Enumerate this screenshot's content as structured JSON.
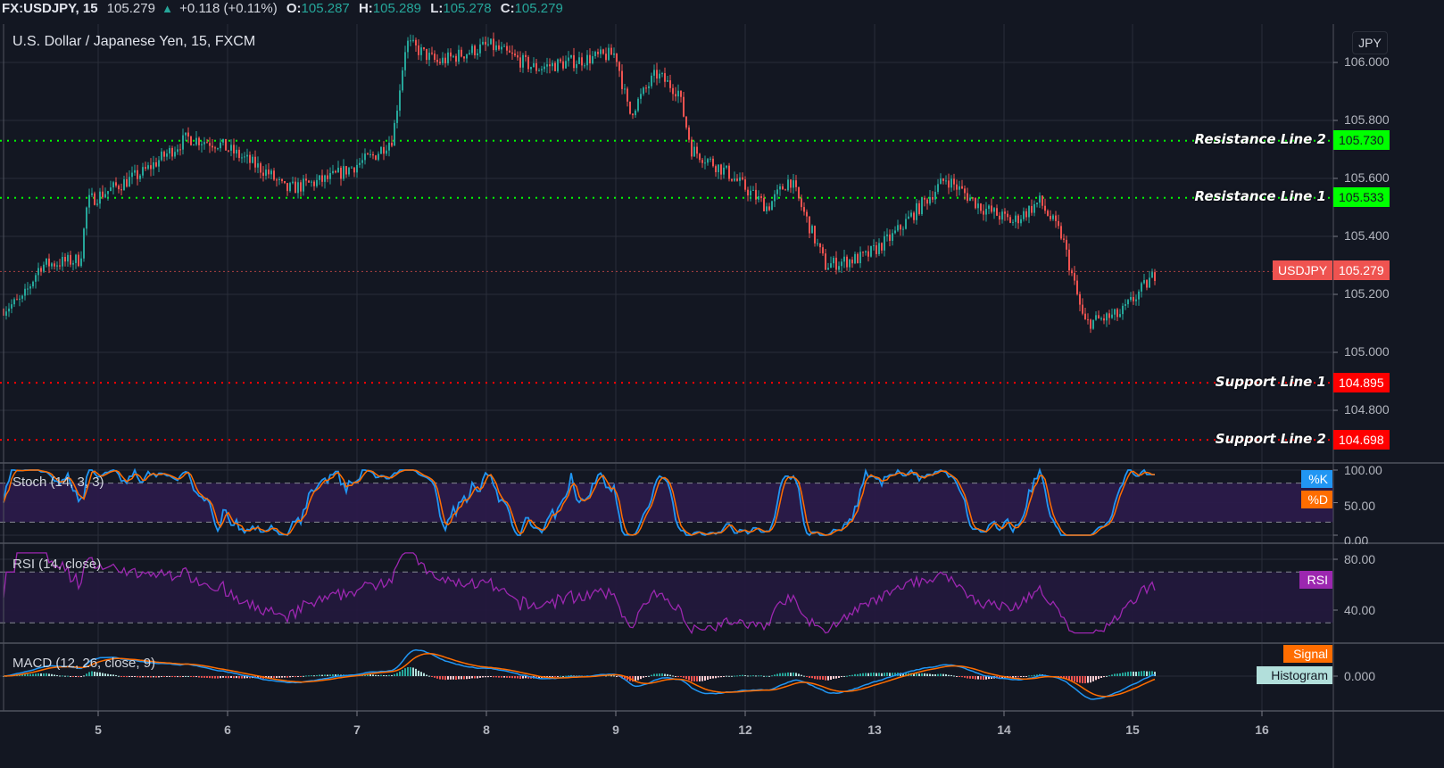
{
  "header": {
    "symbol": "FX:USDJPY, 15",
    "last": "105.279",
    "arrow": "▲",
    "change": "+0.118 (+0.11%)",
    "open_label": "O:",
    "open": "105.287",
    "high_label": "H:",
    "high": "105.289",
    "low_label": "L:",
    "low": "105.278",
    "close_label": "C:",
    "close": "105.279"
  },
  "main_pane": {
    "title": "U.S. Dollar / Japanese Yen, 15, FXCM",
    "currency_button": "JPY",
    "price_ticks": [
      "106.000",
      "105.800",
      "105.600",
      "105.400",
      "105.200",
      "105.000",
      "104.800"
    ],
    "lines": [
      {
        "label": "Resistance Line 2",
        "value": "105.730",
        "color": "#00ff00"
      },
      {
        "label": "Resistance Line 1",
        "value": "105.533",
        "color": "#00ff00"
      },
      {
        "label": "Support Line 1",
        "value": "104.895",
        "color": "#ff0000"
      },
      {
        "label": "Support Line 2",
        "value": "104.698",
        "color": "#ff0000"
      }
    ],
    "current_price": {
      "label": "USDJPY",
      "value": "105.279",
      "color": "#ef5350"
    }
  },
  "stoch_pane": {
    "title": "Stoch (14, 3, 3)",
    "ticks": [
      "100.00",
      "50.00",
      "0.00"
    ],
    "legend_k": "%K",
    "legend_d": "%D",
    "k_color": "#2196f3",
    "d_color": "#ff6d00"
  },
  "rsi_pane": {
    "title": "RSI (14, close)",
    "ticks": [
      "80.00",
      "40.00"
    ],
    "legend": "RSI",
    "color": "#9c27b0"
  },
  "macd_pane": {
    "title": "MACD (12, 26, close, 9)",
    "ticks": [
      "0.000"
    ],
    "legend_signal": "Signal",
    "legend_histogram": "Histogram"
  },
  "time_axis": {
    "labels": [
      "5",
      "6",
      "7",
      "8",
      "9",
      "12",
      "13",
      "14",
      "15",
      "16"
    ]
  },
  "colors": {
    "background": "#131722",
    "grid": "#2a2e39",
    "up": "#26a69a",
    "down": "#ef5350",
    "band": "#2a1a4a"
  },
  "chart_data": [
    {
      "type": "candlestick",
      "title": "U.S. Dollar / Japanese Yen, 15, FXCM",
      "x": [
        "4",
        "5",
        "6",
        "7",
        "8",
        "9",
        "12",
        "13",
        "14",
        "15"
      ],
      "close_path_approx": [
        105.18,
        105.38,
        105.75,
        105.62,
        106.02,
        106.01,
        105.7,
        105.32,
        105.52,
        105.279
      ],
      "high_approx": 106.1,
      "low_approx": 105.04,
      "ylim": [
        104.62,
        106.13
      ],
      "y_ticks": [
        104.8,
        105.0,
        105.2,
        105.4,
        105.6,
        105.8,
        106.0
      ],
      "horizontal_lines": [
        {
          "name": "Resistance Line 2",
          "value": 105.73
        },
        {
          "name": "Resistance Line 1",
          "value": 105.533
        },
        {
          "name": "Support Line 1",
          "value": 104.895
        },
        {
          "name": "Support Line 2",
          "value": 104.698
        }
      ],
      "last_price": 105.279
    },
    {
      "type": "line",
      "title": "Stoch (14, 3, 3)",
      "series": [
        {
          "name": "%K"
        },
        {
          "name": "%D"
        }
      ],
      "ylim": [
        0,
        100
      ],
      "bands": [
        20,
        80
      ],
      "last_value_approx": 85
    },
    {
      "type": "line",
      "title": "RSI (14, close)",
      "series": [
        {
          "name": "RSI"
        }
      ],
      "ylim": [
        20,
        90
      ],
      "bands": [
        30,
        70
      ],
      "last_value_approx": 65
    },
    {
      "type": "line",
      "title": "MACD (12, 26, close, 9)",
      "series": [
        {
          "name": "MACD"
        },
        {
          "name": "Signal"
        },
        {
          "name": "Histogram"
        }
      ],
      "zero_line": 0.0
    }
  ]
}
